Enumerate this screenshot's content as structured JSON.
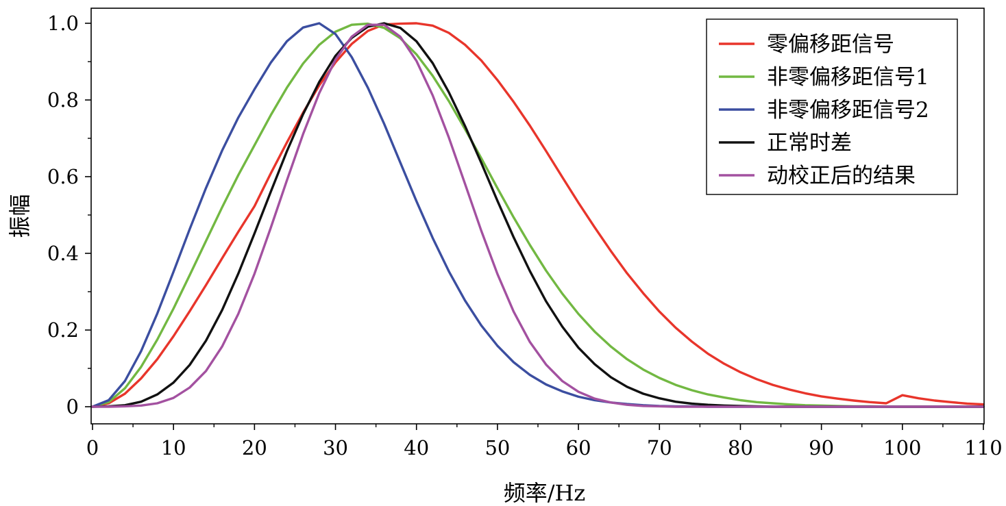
{
  "chart_data": {
    "type": "line",
    "title": "",
    "xlabel": "频率/Hz",
    "ylabel": "振幅",
    "xlim": [
      0,
      110
    ],
    "ylim": [
      -0.05,
      1.05
    ],
    "xticks": [
      0,
      10,
      20,
      30,
      40,
      50,
      60,
      70,
      80,
      90,
      100,
      110
    ],
    "xtick_labels": [
      "0",
      "10",
      "20",
      "30",
      "40",
      "50",
      "60",
      "70",
      "80",
      "90",
      "100",
      "110"
    ],
    "yticks": [
      0,
      0.2,
      0.4,
      0.6,
      0.8,
      1.0
    ],
    "ytick_labels": [
      "0",
      "0.2",
      "0.4",
      "0.6",
      "0.8",
      "1.0"
    ],
    "grid": false,
    "legend_position": "top-right",
    "x": [
      0,
      2,
      4,
      6,
      8,
      10,
      12,
      14,
      16,
      18,
      20,
      22,
      24,
      26,
      28,
      30,
      32,
      34,
      36,
      38,
      40,
      42,
      44,
      46,
      48,
      50,
      52,
      54,
      56,
      58,
      60,
      62,
      64,
      66,
      68,
      70,
      72,
      74,
      76,
      78,
      80,
      82,
      84,
      86,
      88,
      90,
      92,
      94,
      96,
      98,
      100,
      102,
      104,
      106,
      108,
      110
    ],
    "series": [
      {
        "name": "零偏移距信号",
        "color": "#e8352b",
        "values": [
          0.0,
          0.009,
          0.034,
          0.074,
          0.124,
          0.184,
          0.249,
          0.317,
          0.387,
          0.456,
          0.523,
          0.608,
          0.689,
          0.767,
          0.838,
          0.898,
          0.946,
          0.98,
          0.997,
          0.999,
          1.0,
          0.994,
          0.975,
          0.944,
          0.903,
          0.852,
          0.795,
          0.733,
          0.667,
          0.599,
          0.532,
          0.468,
          0.406,
          0.348,
          0.296,
          0.248,
          0.206,
          0.17,
          0.138,
          0.112,
          0.09,
          0.072,
          0.057,
          0.045,
          0.035,
          0.027,
          0.021,
          0.016,
          0.012,
          0.009,
          0.03,
          0.022,
          0.016,
          0.012,
          0.008,
          0.006
        ]
      },
      {
        "name": "非零偏移距信号1",
        "color": "#72b842",
        "values": [
          0.0,
          0.012,
          0.048,
          0.104,
          0.175,
          0.256,
          0.343,
          0.432,
          0.52,
          0.604,
          0.682,
          0.76,
          0.832,
          0.895,
          0.944,
          0.978,
          0.996,
          0.999,
          0.988,
          0.961,
          0.919,
          0.863,
          0.797,
          0.724,
          0.648,
          0.57,
          0.494,
          0.422,
          0.355,
          0.295,
          0.242,
          0.196,
          0.157,
          0.124,
          0.097,
          0.075,
          0.057,
          0.043,
          0.032,
          0.024,
          0.017,
          0.012,
          0.009,
          0.006,
          0.004,
          0.003,
          0.002,
          0.001,
          0.001,
          0.0,
          0.0,
          0.0,
          0.0,
          0.0,
          0.0,
          0.0
        ]
      },
      {
        "name": "非零偏移距信号2",
        "color": "#3b4ea0",
        "values": [
          0.0,
          0.017,
          0.067,
          0.145,
          0.243,
          0.352,
          0.463,
          0.57,
          0.668,
          0.754,
          0.828,
          0.897,
          0.953,
          0.989,
          1.0,
          0.972,
          0.912,
          0.832,
          0.738,
          0.637,
          0.536,
          0.44,
          0.353,
          0.277,
          0.212,
          0.159,
          0.116,
          0.083,
          0.058,
          0.04,
          0.026,
          0.017,
          0.011,
          0.007,
          0.004,
          0.002,
          0.001,
          0.001,
          0.0,
          0.0,
          0.0,
          0.0,
          0.0,
          0.0,
          0.0,
          0.0,
          0.0,
          0.0,
          0.0,
          0.0,
          0.0,
          0.0,
          0.0,
          0.0,
          0.0,
          0.0
        ]
      },
      {
        "name": "正常时差",
        "color": "#111111",
        "values": [
          0.0,
          0.001,
          0.004,
          0.013,
          0.032,
          0.063,
          0.109,
          0.172,
          0.252,
          0.347,
          0.452,
          0.56,
          0.666,
          0.763,
          0.847,
          0.915,
          0.962,
          0.991,
          1.0,
          0.988,
          0.953,
          0.896,
          0.82,
          0.732,
          0.636,
          0.537,
          0.442,
          0.354,
          0.275,
          0.209,
          0.154,
          0.111,
          0.077,
          0.052,
          0.034,
          0.022,
          0.013,
          0.008,
          0.005,
          0.003,
          0.002,
          0.001,
          0.0,
          0.0,
          0.0,
          0.0,
          0.0,
          0.0,
          0.0,
          0.0,
          0.0,
          0.0,
          0.0,
          0.0,
          0.0,
          0.0
        ]
      },
      {
        "name": "动校正后的结果",
        "color": "#a351a0",
        "values": [
          0.0,
          0.0,
          0.001,
          0.003,
          0.009,
          0.023,
          0.05,
          0.093,
          0.157,
          0.242,
          0.347,
          0.466,
          0.59,
          0.711,
          0.818,
          0.905,
          0.965,
          0.996,
          0.996,
          0.965,
          0.902,
          0.812,
          0.702,
          0.581,
          0.459,
          0.346,
          0.248,
          0.169,
          0.11,
          0.067,
          0.039,
          0.021,
          0.011,
          0.005,
          0.002,
          0.001,
          0.0,
          0.0,
          0.0,
          0.0,
          0.0,
          0.0,
          0.0,
          0.0,
          0.0,
          0.0,
          0.0,
          0.0,
          0.0,
          0.0,
          0.0,
          0.0,
          0.0,
          0.0,
          0.0,
          0.0
        ]
      }
    ]
  }
}
